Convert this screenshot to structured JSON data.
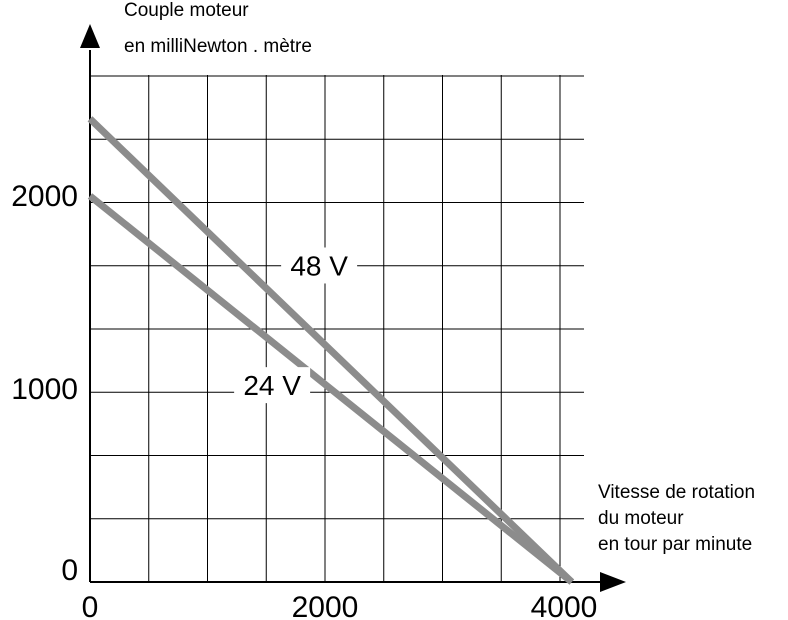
{
  "chart_data": {
    "type": "line",
    "ylabel": [
      "Couple moteur",
      "en milliNewton . mètre"
    ],
    "xlabel": [
      "Vitesse de rotation",
      "du moteur",
      "en tour par minute"
    ],
    "xlim": [
      0,
      4000
    ],
    "ylim": [
      0,
      2400
    ],
    "x_ticks": [
      0,
      2000,
      4000
    ],
    "x_tick_labels": [
      "0",
      "2000",
      "4000"
    ],
    "y_ticks": [
      0,
      1000,
      2000
    ],
    "y_tick_labels": [
      "0",
      "1000",
      "2000"
    ],
    "grid": true,
    "series": [
      {
        "name": "48 V",
        "x": [
          0,
          4100
        ],
        "y": [
          2400,
          0
        ],
        "color": "#8c8c8c"
      },
      {
        "name": "24 V",
        "x": [
          0,
          4100
        ],
        "y": [
          2000,
          0
        ],
        "color": "#8c8c8c"
      }
    ],
    "annotations": [
      {
        "text": "48 V",
        "x": 1950,
        "y": 1640
      },
      {
        "text": "24 V",
        "x": 1550,
        "y": 1020
      }
    ]
  }
}
